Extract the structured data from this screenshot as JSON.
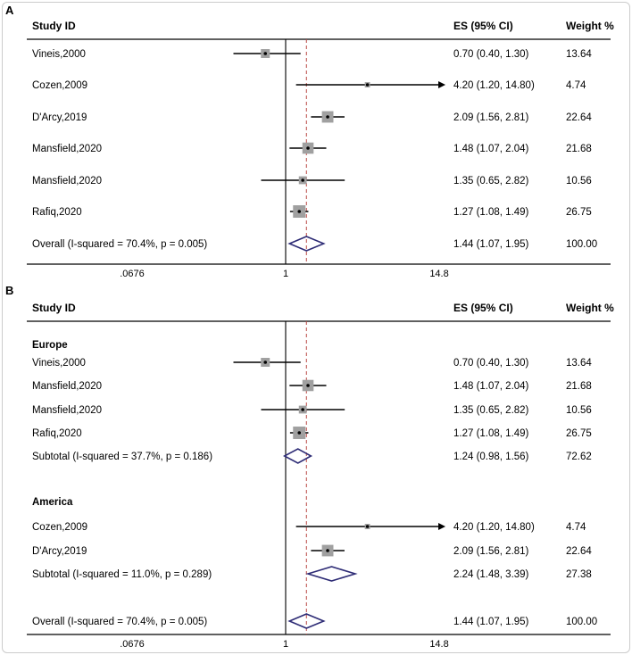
{
  "figure": {
    "panel_labels": [
      "A",
      "B"
    ]
  },
  "style": {
    "square_color": "#a0a0a0",
    "diamond_color": "#2d2b75",
    "dashed_line_color": "#b94743",
    "axis_color": "#000000",
    "border_color": "#cccccc"
  },
  "chart_data": [
    {
      "type": "forest",
      "panel_label": "A",
      "columns": {
        "study": "Study ID",
        "es": "ES (95% CI)",
        "weight": "Weight %"
      },
      "x_axis": {
        "scale": "log",
        "ticks": [
          0.0676,
          1,
          14.8
        ],
        "tick_labels": [
          ".0676",
          "1",
          "14.8"
        ],
        "null_line": 1
      },
      "groups": [
        {
          "name": "",
          "studies": [
            {
              "label": "Vineis,2000",
              "es": 0.7,
              "lo": 0.4,
              "hi": 1.3,
              "es_text": "0.70 (0.40, 1.30)",
              "weight": 13.64,
              "weight_text": "13.64"
            },
            {
              "label": "Cozen,2009",
              "es": 4.2,
              "lo": 1.2,
              "hi": 14.8,
              "es_text": "4.20 (1.20, 14.80)",
              "weight": 4.74,
              "weight_text": "4.74"
            },
            {
              "label": "D'Arcy,2019",
              "es": 2.09,
              "lo": 1.56,
              "hi": 2.81,
              "es_text": "2.09 (1.56, 2.81)",
              "weight": 22.64,
              "weight_text": "22.64"
            },
            {
              "label": "Mansfield,2020",
              "es": 1.48,
              "lo": 1.07,
              "hi": 2.04,
              "es_text": "1.48 (1.07, 2.04)",
              "weight": 21.68,
              "weight_text": "21.68"
            },
            {
              "label": "Mansfield,2020",
              "es": 1.35,
              "lo": 0.65,
              "hi": 2.82,
              "es_text": "1.35 (0.65, 2.82)",
              "weight": 10.56,
              "weight_text": "10.56"
            },
            {
              "label": "Rafiq,2020",
              "es": 1.27,
              "lo": 1.08,
              "hi": 1.49,
              "es_text": "1.27 (1.08, 1.49)",
              "weight": 26.75,
              "weight_text": "26.75"
            }
          ]
        }
      ],
      "overall": {
        "label": "Overall  (I-squared = 70.4%, p = 0.005)",
        "es": 1.44,
        "lo": 1.07,
        "hi": 1.95,
        "es_text": "1.44 (1.07, 1.95)",
        "weight_text": "100.00"
      }
    },
    {
      "type": "forest",
      "panel_label": "B",
      "columns": {
        "study": "Study ID",
        "es": "ES (95% CI)",
        "weight": "Weight %"
      },
      "x_axis": {
        "scale": "log",
        "ticks": [
          0.0676,
          1,
          14.8
        ],
        "tick_labels": [
          ".0676",
          "1",
          "14.8"
        ],
        "null_line": 1
      },
      "groups": [
        {
          "name": "Europe",
          "studies": [
            {
              "label": "Vineis,2000",
              "es": 0.7,
              "lo": 0.4,
              "hi": 1.3,
              "es_text": "0.70 (0.40, 1.30)",
              "weight": 13.64,
              "weight_text": "13.64"
            },
            {
              "label": "Mansfield,2020",
              "es": 1.48,
              "lo": 1.07,
              "hi": 2.04,
              "es_text": "1.48 (1.07, 2.04)",
              "weight": 21.68,
              "weight_text": "21.68"
            },
            {
              "label": "Mansfield,2020",
              "es": 1.35,
              "lo": 0.65,
              "hi": 2.82,
              "es_text": "1.35 (0.65, 2.82)",
              "weight": 10.56,
              "weight_text": "10.56"
            },
            {
              "label": "Rafiq,2020",
              "es": 1.27,
              "lo": 1.08,
              "hi": 1.49,
              "es_text": "1.27 (1.08, 1.49)",
              "weight": 26.75,
              "weight_text": "26.75"
            }
          ],
          "subtotal": {
            "label": "Subtotal  (I-squared = 37.7%, p = 0.186)",
            "es": 1.24,
            "lo": 0.98,
            "hi": 1.56,
            "es_text": "1.24 (0.98, 1.56)",
            "weight_text": "72.62"
          }
        },
        {
          "name": "America",
          "studies": [
            {
              "label": "Cozen,2009",
              "es": 4.2,
              "lo": 1.2,
              "hi": 14.8,
              "es_text": "4.20 (1.20, 14.80)",
              "weight": 4.74,
              "weight_text": "4.74"
            },
            {
              "label": "D'Arcy,2019",
              "es": 2.09,
              "lo": 1.56,
              "hi": 2.81,
              "es_text": "2.09 (1.56, 2.81)",
              "weight": 22.64,
              "weight_text": "22.64"
            }
          ],
          "subtotal": {
            "label": "Subtotal  (I-squared = 11.0%, p = 0.289)",
            "es": 2.24,
            "lo": 1.48,
            "hi": 3.39,
            "es_text": "2.24 (1.48, 3.39)",
            "weight_text": "27.38"
          }
        }
      ],
      "overall": {
        "label": "Overall  (I-squared = 70.4%, p = 0.005)",
        "es": 1.44,
        "lo": 1.07,
        "hi": 1.95,
        "es_text": "1.44 (1.07, 1.95)",
        "weight_text": "100.00"
      }
    }
  ]
}
